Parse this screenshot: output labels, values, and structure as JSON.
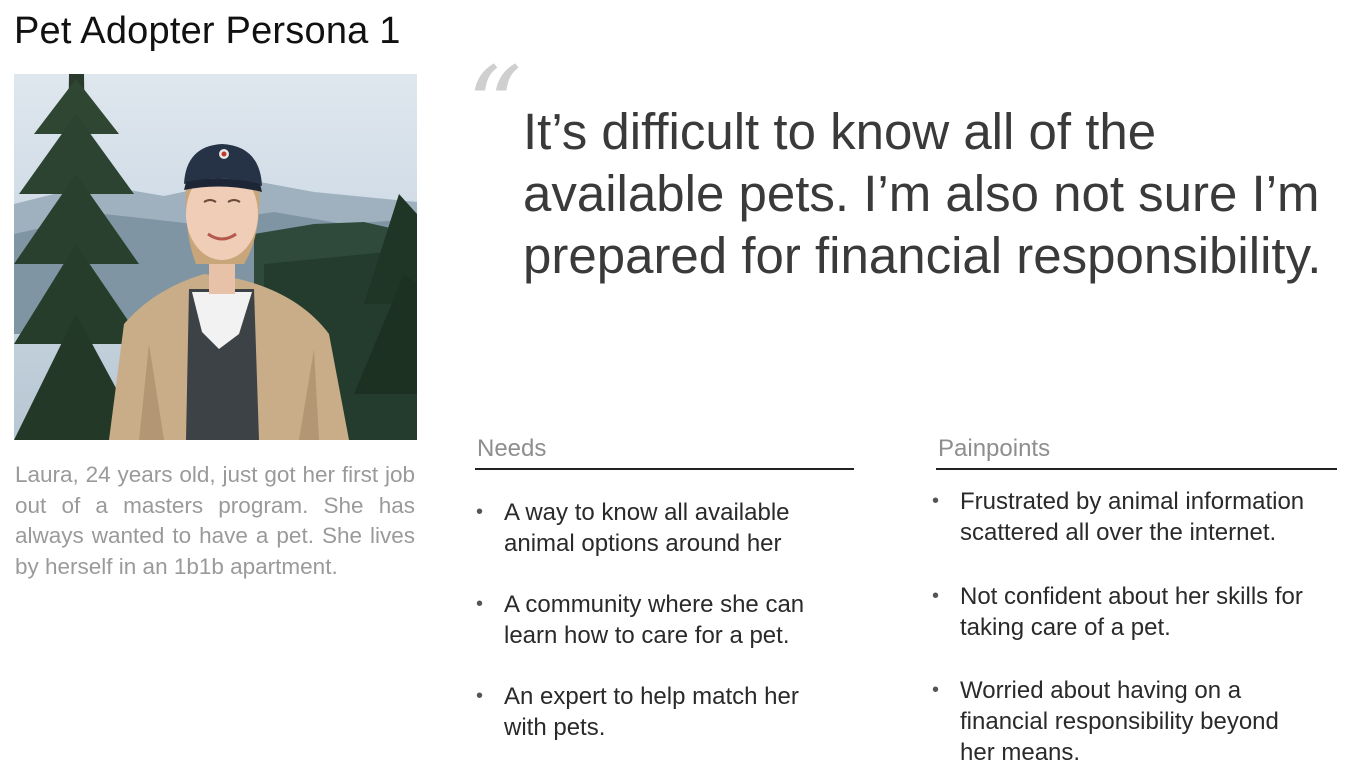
{
  "title": "Pet Adopter Persona 1",
  "bio": "Laura, 24 years old, just got her first job out of a masters program. She has always wanted to have a pet. She lives by herself in an 1b1b apartment.",
  "quote": {
    "lines": [
      "It’s difficult to know all of the",
      "available pets. I’m also not sure I’m",
      "prepared for financial responsibility."
    ]
  },
  "needs": {
    "heading": "Needs",
    "items": [
      {
        "lines": [
          "A way to know all available",
          "animal options around her"
        ]
      },
      {
        "lines": [
          "A community where she can",
          "learn how to care for a pet."
        ]
      },
      {
        "lines": [
          "An expert to help match her",
          "with pets."
        ]
      }
    ]
  },
  "painpoints": {
    "heading": "Painpoints",
    "items": [
      {
        "lines": [
          "Frustrated by animal information",
          "scattered all over the internet."
        ]
      },
      {
        "lines": [
          "Not confident about her skills for",
          "taking care of a pet."
        ]
      },
      {
        "lines": [
          "Worried about having on a",
          "financial responsibility beyond",
          "her means."
        ]
      }
    ]
  },
  "bullet": "•"
}
